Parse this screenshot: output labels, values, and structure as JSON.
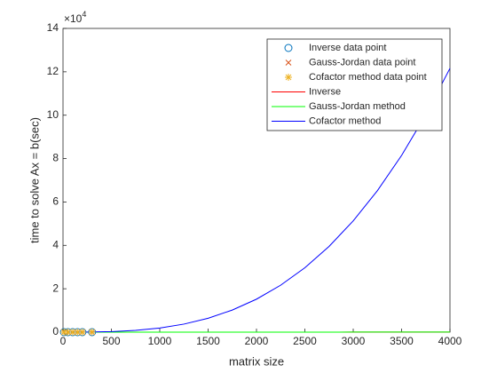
{
  "chart_data": {
    "type": "line",
    "xlabel": "matrix size",
    "ylabel": "time to solve Ax = b(sec)",
    "y_exponent_base": "×10",
    "y_exponent_power": "4",
    "xlim": [
      0,
      4000
    ],
    "xticks": [
      0,
      500,
      1000,
      1500,
      2000,
      2500,
      3000,
      3500,
      4000
    ],
    "ylim": [
      0,
      140000
    ],
    "yticks": [
      {
        "value": 0,
        "label": "0"
      },
      {
        "value": 20000,
        "label": "2"
      },
      {
        "value": 40000,
        "label": "4"
      },
      {
        "value": 60000,
        "label": "6"
      },
      {
        "value": 80000,
        "label": "8"
      },
      {
        "value": 100000,
        "label": "10"
      },
      {
        "value": 120000,
        "label": "12"
      },
      {
        "value": 140000,
        "label": "14"
      }
    ],
    "legend": "upper right",
    "series": [
      {
        "name": "Inverse data point",
        "color": "#0072bd",
        "marker": "o",
        "x": [
          10,
          50,
          100,
          150,
          200,
          300
        ],
        "values": [
          0,
          0,
          0.01,
          0.03,
          0.07,
          0.25
        ]
      },
      {
        "name": "Gauss-Jordan data point",
        "color": "#d95319",
        "marker": "x",
        "x": [
          10,
          50,
          100,
          150,
          200,
          300
        ],
        "values": [
          0,
          0,
          0.02,
          0.05,
          0.1,
          0.3
        ]
      },
      {
        "name": "Cofactor method data point",
        "color": "#edb120",
        "marker": "*",
        "x": [
          10,
          50,
          100,
          150,
          200,
          300
        ],
        "values": [
          0.0019,
          0.24,
          1.9,
          6.4,
          15.2,
          51.3
        ]
      },
      {
        "name": "Inverse",
        "color": "#ff0000",
        "marker": "none",
        "x": [
          0,
          500,
          1000,
          1500,
          2000,
          2500,
          3000,
          3500,
          4000
        ],
        "values": [
          0,
          0.1,
          1,
          3.4,
          8,
          16,
          27,
          43,
          64
        ]
      },
      {
        "name": "Gauss-Jordan method",
        "color": "#00ff00",
        "marker": "none",
        "x": [
          0,
          500,
          1000,
          1500,
          2000,
          2500,
          3000,
          3500,
          4000
        ],
        "values": [
          0,
          0.1,
          1,
          3.4,
          8,
          16,
          27,
          43,
          64
        ]
      },
      {
        "name": "Cofactor method",
        "color": "#0000ff",
        "marker": "none",
        "x": [
          0,
          250,
          500,
          750,
          1000,
          1250,
          1500,
          1750,
          2000,
          2250,
          2500,
          2750,
          3000,
          3250,
          3500,
          3750,
          4000
        ],
        "values": [
          0,
          29.7,
          237.5,
          801.6,
          1900,
          3711,
          6413,
          10183,
          15200,
          21642,
          29688,
          39514,
          51300,
          65223,
          81463,
          100195,
          121600
        ]
      }
    ]
  }
}
